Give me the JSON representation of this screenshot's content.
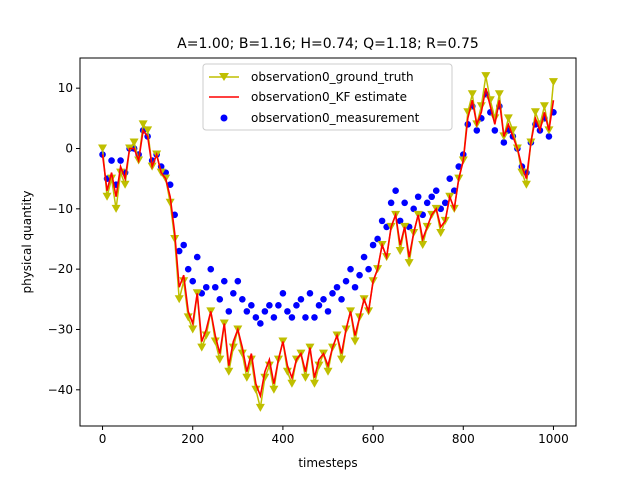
{
  "chart_data": {
    "type": "line",
    "title": "A=1.00; B=1.16; H=0.74; Q=1.18; R=0.75",
    "xlabel": "timesteps",
    "ylabel": "physical quantity",
    "xlim": [
      -50,
      1050
    ],
    "ylim": [
      -46,
      15
    ],
    "xticks": [
      0,
      200,
      400,
      600,
      800,
      1000
    ],
    "yticks": [
      -40,
      -30,
      -20,
      -10,
      0,
      10
    ],
    "xtick_labels": [
      "0",
      "200",
      "400",
      "600",
      "800",
      "1000"
    ],
    "ytick_labels": [
      "−40",
      "−30",
      "−20",
      "−10",
      "0",
      "10"
    ],
    "grid": false,
    "legend_position": "upper-center",
    "legend": [
      {
        "name": "observation0_ground_truth",
        "marker": "triangle-down",
        "color": "#bfbf00"
      },
      {
        "name": "observation0_KF estimate",
        "marker": "line",
        "color": "#ff0000"
      },
      {
        "name": "observation0_measurement",
        "marker": "circle",
        "color": "#0000ff"
      }
    ],
    "series": [
      {
        "name": "observation0_ground_truth",
        "color": "#bfbf00",
        "x": [
          0,
          10,
          20,
          30,
          40,
          50,
          60,
          70,
          80,
          90,
          100,
          110,
          120,
          130,
          140,
          150,
          160,
          170,
          180,
          190,
          200,
          210,
          220,
          230,
          240,
          250,
          260,
          270,
          280,
          290,
          300,
          310,
          320,
          330,
          340,
          350,
          360,
          370,
          380,
          390,
          400,
          410,
          420,
          430,
          440,
          450,
          460,
          470,
          480,
          490,
          500,
          510,
          520,
          530,
          540,
          550,
          560,
          570,
          580,
          590,
          600,
          610,
          620,
          630,
          640,
          650,
          660,
          670,
          680,
          690,
          700,
          710,
          720,
          730,
          740,
          750,
          760,
          770,
          780,
          790,
          800,
          810,
          820,
          830,
          840,
          850,
          860,
          870,
          880,
          890,
          900,
          910,
          920,
          930,
          940,
          950,
          960,
          970,
          980,
          990,
          1000
        ],
        "y": [
          0,
          -8,
          -5,
          -10,
          -4,
          -6,
          0,
          1,
          -2,
          4,
          3,
          -3,
          -1,
          -4,
          -5,
          -9,
          -15,
          -25,
          -22,
          -28,
          -30,
          -24,
          -33,
          -31,
          -27,
          -32,
          -35,
          -29,
          -37,
          -33,
          -30,
          -34,
          -38,
          -35,
          -40,
          -43,
          -38,
          -36,
          -40,
          -35,
          -32,
          -37,
          -39,
          -35,
          -34,
          -38,
          -33,
          -39,
          -36,
          -34,
          -37,
          -33,
          -31,
          -35,
          -30,
          -27,
          -32,
          -28,
          -25,
          -27,
          -22,
          -20,
          -16,
          -18,
          -13,
          -11,
          -17,
          -13,
          -19,
          -14,
          -11,
          -16,
          -13,
          -11,
          -10,
          -14,
          -12,
          -8,
          -10,
          -5,
          -2,
          6,
          9,
          4,
          7,
          12,
          8,
          5,
          9,
          2,
          5,
          3,
          0,
          -4,
          -6,
          1,
          6,
          4,
          7,
          3,
          11
        ]
      },
      {
        "name": "observation0_KF estimate",
        "color": "#ff0000",
        "x": [
          0,
          10,
          20,
          30,
          40,
          50,
          60,
          70,
          80,
          90,
          100,
          110,
          120,
          130,
          140,
          150,
          160,
          170,
          180,
          190,
          200,
          210,
          220,
          230,
          240,
          250,
          260,
          270,
          280,
          290,
          300,
          310,
          320,
          330,
          340,
          350,
          360,
          370,
          380,
          390,
          400,
          410,
          420,
          430,
          440,
          450,
          460,
          470,
          480,
          490,
          500,
          510,
          520,
          530,
          540,
          550,
          560,
          570,
          580,
          590,
          600,
          610,
          620,
          630,
          640,
          650,
          660,
          670,
          680,
          690,
          700,
          710,
          720,
          730,
          740,
          750,
          760,
          770,
          780,
          790,
          800,
          810,
          820,
          830,
          840,
          850,
          860,
          870,
          880,
          890,
          900,
          910,
          920,
          930,
          940,
          950,
          960,
          970,
          980,
          990,
          1000
        ],
        "y": [
          -1,
          -7,
          -4,
          -8,
          -3,
          -5,
          0,
          0,
          -2,
          3,
          2,
          -3,
          -1,
          -4,
          -5,
          -8,
          -14,
          -23,
          -21,
          -27,
          -29,
          -24,
          -32,
          -30,
          -27,
          -31,
          -34,
          -29,
          -36,
          -32,
          -30,
          -33,
          -37,
          -34,
          -39,
          -41,
          -37,
          -35,
          -39,
          -35,
          -32,
          -36,
          -38,
          -35,
          -34,
          -37,
          -33,
          -38,
          -35,
          -34,
          -36,
          -33,
          -31,
          -34,
          -30,
          -27,
          -31,
          -28,
          -25,
          -27,
          -22,
          -20,
          -16,
          -18,
          -13,
          -11,
          -16,
          -13,
          -18,
          -14,
          -11,
          -15,
          -13,
          -11,
          -10,
          -13,
          -12,
          -8,
          -10,
          -5,
          -2,
          5,
          8,
          4,
          6,
          10,
          7,
          4,
          8,
          2,
          4,
          2,
          0,
          -3,
          -5,
          1,
          5,
          3,
          6,
          3,
          8
        ]
      },
      {
        "name": "observation0_measurement",
        "color": "#0000ff",
        "x": [
          0,
          10,
          20,
          30,
          40,
          50,
          60,
          70,
          80,
          90,
          100,
          110,
          120,
          130,
          140,
          150,
          160,
          170,
          180,
          190,
          200,
          210,
          220,
          230,
          240,
          250,
          260,
          270,
          280,
          290,
          300,
          310,
          320,
          330,
          340,
          350,
          360,
          370,
          380,
          390,
          400,
          410,
          420,
          430,
          440,
          450,
          460,
          470,
          480,
          490,
          500,
          510,
          520,
          530,
          540,
          550,
          560,
          570,
          580,
          590,
          600,
          610,
          620,
          630,
          640,
          650,
          660,
          670,
          680,
          690,
          700,
          710,
          720,
          730,
          740,
          750,
          760,
          770,
          780,
          790,
          800,
          810,
          820,
          830,
          840,
          850,
          860,
          870,
          880,
          890,
          900,
          910,
          920,
          930,
          940,
          950,
          960,
          970,
          980,
          990,
          1000
        ],
        "y": [
          -1,
          -5,
          -2,
          -6,
          -2,
          -4,
          0,
          0,
          -1,
          3,
          2,
          -2,
          -1,
          -3,
          -4,
          -6,
          -11,
          -17,
          -16,
          -20,
          -22,
          -18,
          -24,
          -23,
          -20,
          -23,
          -25,
          -22,
          -27,
          -24,
          -22,
          -25,
          -27,
          -26,
          -28,
          -29,
          -27,
          -26,
          -28,
          -26,
          -24,
          -27,
          -28,
          -26,
          -25,
          -28,
          -24,
          -28,
          -26,
          -25,
          -27,
          -24,
          -23,
          -25,
          -22,
          -20,
          -23,
          -21,
          -18,
          -20,
          -16,
          -15,
          -12,
          -13,
          -9,
          -7,
          -12,
          -9,
          -13,
          -10,
          -8,
          -11,
          -9,
          -8,
          -7,
          -10,
          -9,
          -5,
          -7,
          -3,
          -1,
          4,
          7,
          3,
          5,
          9,
          6,
          3,
          7,
          1,
          3,
          2,
          0,
          -3,
          -4,
          1,
          4,
          3,
          5,
          2,
          6
        ]
      }
    ]
  }
}
